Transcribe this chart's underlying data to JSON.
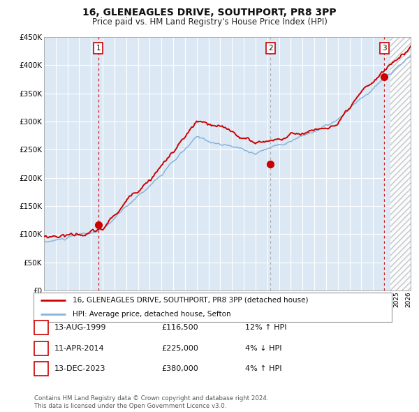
{
  "title": "16, GLENEAGLES DRIVE, SOUTHPORT, PR8 3PP",
  "subtitle": "Price paid vs. HM Land Registry's House Price Index (HPI)",
  "ytick_vals": [
    0,
    50000,
    100000,
    150000,
    200000,
    250000,
    300000,
    350000,
    400000,
    450000
  ],
  "ylim": [
    0,
    450000
  ],
  "xlim_start": 1995.3,
  "xlim_end": 2026.2,
  "background_color": "#dce9f5",
  "grid_color": "#ffffff",
  "hpi_line_color": "#89b4d9",
  "price_line_color": "#cc0000",
  "marker_color": "#cc0000",
  "vline1_color": "#cc0000",
  "vline2_color": "#aaaaaa",
  "vline3_color": "#cc0000",
  "sale_points": [
    {
      "year": 1999.62,
      "price": 116500,
      "label": "1",
      "vline_color": "#cc0000",
      "vline_style": "dashed_red"
    },
    {
      "year": 2014.28,
      "price": 225000,
      "label": "2",
      "vline_color": "#aaaaaa",
      "vline_style": "dashed_gray"
    },
    {
      "year": 2023.95,
      "price": 380000,
      "label": "3",
      "vline_color": "#cc0000",
      "vline_style": "dashed_red"
    }
  ],
  "legend_entries": [
    "16, GLENEAGLES DRIVE, SOUTHPORT, PR8 3PP (detached house)",
    "HPI: Average price, detached house, Sefton"
  ],
  "table_rows": [
    {
      "num": "1",
      "date": "13-AUG-1999",
      "price": "£116,500",
      "hpi": "12% ↑ HPI"
    },
    {
      "num": "2",
      "date": "11-APR-2014",
      "price": "£225,000",
      "hpi": "4% ↓ HPI"
    },
    {
      "num": "3",
      "date": "13-DEC-2023",
      "price": "£380,000",
      "hpi": "4% ↑ HPI"
    }
  ],
  "footer": "Contains HM Land Registry data © Crown copyright and database right 2024.\nThis data is licensed under the Open Government Licence v3.0.",
  "hatch_region_start": 2024.5,
  "hatch_region_end": 2026.2
}
